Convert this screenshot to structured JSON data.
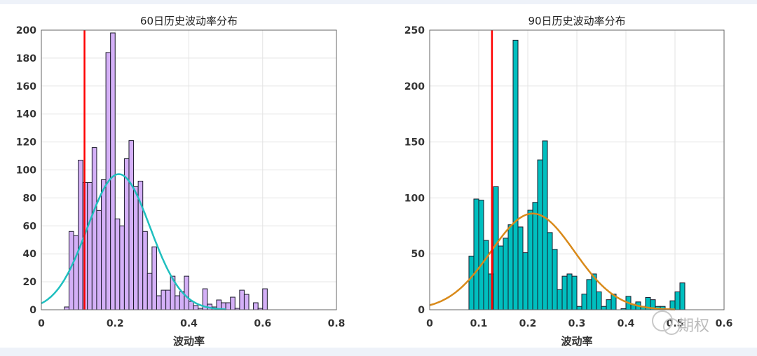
{
  "chart_data": [
    {
      "type": "bar",
      "subtype": "histogram",
      "title": "60日历史波动率分布",
      "xlabel": "波动率",
      "ylabel": "",
      "xlim": [
        0,
        0.8
      ],
      "ylim": [
        0,
        200
      ],
      "xticks": [
        "0",
        "0.2",
        "0.4",
        "0.6",
        "0.8"
      ],
      "yticks": [
        "0",
        "20",
        "40",
        "60",
        "80",
        "100",
        "120",
        "140",
        "160",
        "180",
        "200"
      ],
      "grid": true,
      "bin_start": 0.0625,
      "bin_width": 0.0125,
      "values": [
        2,
        56,
        53,
        107,
        91,
        91,
        116,
        71,
        93,
        184,
        198,
        65,
        60,
        108,
        121,
        88,
        92,
        56,
        26,
        45,
        10,
        14,
        14,
        24,
        10,
        13,
        24,
        6,
        3,
        1,
        15,
        4,
        2,
        7,
        5,
        5,
        9,
        1,
        14,
        11,
        0,
        5,
        1,
        15
      ],
      "bar_color": "#d4b0f7",
      "fit_curve": {
        "type": "normal",
        "mean": 0.21,
        "sd": 0.085,
        "peak": 97,
        "x_range": [
          0,
          0.5
        ],
        "color": "#1fbfbf"
      },
      "marker_line": {
        "x": 0.117,
        "color": "#ff0000"
      }
    },
    {
      "type": "bar",
      "subtype": "histogram",
      "title": "90日历史波动率分布",
      "xlabel": "波动率",
      "ylabel": "",
      "xlim": [
        0,
        0.6
      ],
      "ylim": [
        0,
        250
      ],
      "xticks": [
        "0",
        "0.1",
        "0.2",
        "0.3",
        "0.4",
        "0.5",
        "0.6"
      ],
      "yticks": [
        "0",
        "50",
        "100",
        "150",
        "200",
        "250"
      ],
      "grid": true,
      "bin_start": 0.08,
      "bin_width": 0.01,
      "values": [
        48,
        99,
        98,
        62,
        32,
        110,
        57,
        64,
        76,
        241,
        74,
        51,
        89,
        96,
        134,
        151,
        69,
        54,
        18,
        30,
        32,
        30,
        3,
        14,
        27,
        32,
        16,
        3,
        9,
        14,
        0,
        1,
        12,
        5,
        7,
        3,
        11,
        9,
        3,
        3,
        1,
        8,
        16,
        24
      ],
      "bar_color": "#00bfbf",
      "fit_curve": {
        "type": "normal",
        "mean": 0.21,
        "sd": 0.085,
        "peak": 86,
        "x_range": [
          0,
          0.5
        ],
        "color": "#d98a1a"
      },
      "marker_line": {
        "x": 0.127,
        "color": "#ff0000"
      }
    }
  ],
  "watermark": "期权"
}
